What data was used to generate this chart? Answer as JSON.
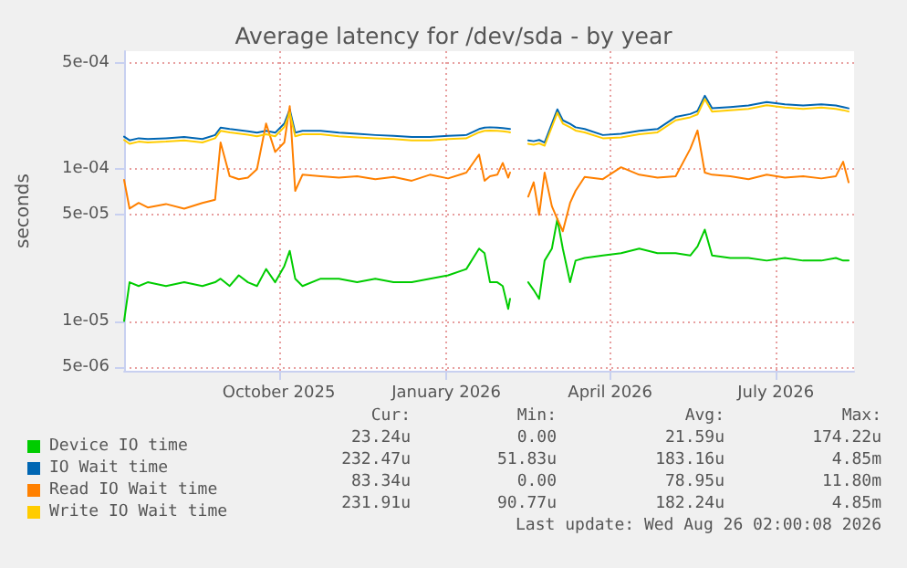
{
  "chart_data": {
    "type": "line",
    "title": "Average latency for /dev/sda - by year",
    "ylabel": "seconds",
    "x": [
      "2025-07-08",
      "2025-07-11",
      "2025-07-16",
      "2025-07-21",
      "2025-07-31",
      "2025-08-10",
      "2025-08-20",
      "2025-08-27",
      "2025-08-30",
      "2025-09-04",
      "2025-09-09",
      "2025-09-14",
      "2025-09-19",
      "2025-09-24",
      "2025-09-29",
      "2025-10-04",
      "2025-10-07",
      "2025-10-10",
      "2025-10-14",
      "2025-10-24",
      "2025-11-03",
      "2025-11-13",
      "2025-11-23",
      "2025-12-03",
      "2025-12-13",
      "2025-12-23",
      "2026-01-02",
      "2026-01-12",
      "2026-01-19",
      "2026-01-22",
      "2026-01-25",
      "2026-01-29",
      "2026-02-01",
      "2026-02-04",
      "2026-02-05",
      "2026-02-10",
      "2026-02-15",
      "2026-02-18",
      "2026-02-21",
      "2026-02-24",
      "2026-02-28",
      "2026-03-03",
      "2026-03-06",
      "2026-03-10",
      "2026-03-13",
      "2026-03-18",
      "2026-03-28",
      "2026-04-07",
      "2026-04-17",
      "2026-04-27",
      "2026-05-07",
      "2026-05-15",
      "2026-05-19",
      "2026-05-23",
      "2026-05-27",
      "2026-06-06",
      "2026-06-16",
      "2026-06-26",
      "2026-07-06",
      "2026-07-16",
      "2026-07-26",
      "2026-08-03",
      "2026-08-07",
      "2026-08-10"
    ],
    "series": [
      {
        "name": "Device IO time",
        "color": "#00cc00",
        "values": [
          1e-05,
          1.8e-05,
          1.7e-05,
          1.8e-05,
          1.7e-05,
          1.8e-05,
          1.7e-05,
          1.8e-05,
          1.9e-05,
          1.7e-05,
          2e-05,
          1.8e-05,
          1.7e-05,
          2.2e-05,
          1.8e-05,
          2.3e-05,
          2.9e-05,
          1.9e-05,
          1.7e-05,
          1.9e-05,
          1.9e-05,
          1.8e-05,
          1.9e-05,
          1.8e-05,
          1.8e-05,
          1.9e-05,
          2e-05,
          2.2e-05,
          3e-05,
          2.8e-05,
          1.8e-05,
          1.8e-05,
          1.7e-05,
          1.2e-05,
          1.4e-05,
          null,
          1.8e-05,
          1.6e-05,
          1.4e-05,
          2.5e-05,
          3e-05,
          4.7e-05,
          3e-05,
          1.8e-05,
          2.5e-05,
          2.6e-05,
          2.7e-05,
          2.8e-05,
          3e-05,
          2.8e-05,
          2.8e-05,
          2.7e-05,
          3.1e-05,
          4e-05,
          2.7e-05,
          2.6e-05,
          2.6e-05,
          2.5e-05,
          2.6e-05,
          2.5e-05,
          2.5e-05,
          2.6e-05,
          2.5e-05,
          2.5e-05
        ]
      },
      {
        "name": "IO Wait time",
        "color": "#0066b3",
        "values": [
          0.000164,
          0.000155,
          0.00016,
          0.000158,
          0.00016,
          0.000163,
          0.000158,
          0.000168,
          0.000188,
          0.000184,
          0.000181,
          0.000178,
          0.000174,
          0.000179,
          0.000174,
          0.0002,
          0.000248,
          0.000174,
          0.000179,
          0.000179,
          0.000174,
          0.000171,
          0.000168,
          0.000166,
          0.000163,
          0.000163,
          0.000166,
          0.000168,
          0.000184,
          0.000188,
          0.000189,
          0.000188,
          0.000187,
          0.000185,
          0.000184,
          null,
          0.000155,
          0.000153,
          0.000156,
          0.00015,
          0.0002,
          0.000248,
          0.00021,
          0.000199,
          0.000189,
          0.000184,
          0.000168,
          0.000171,
          0.000179,
          0.000184,
          0.000221,
          0.000231,
          0.000242,
          0.000305,
          0.000252,
          0.000257,
          0.000263,
          0.000277,
          0.000268,
          0.000263,
          0.000268,
          0.000263,
          0.000257,
          0.000252
        ]
      },
      {
        "name": "Read IO Wait time",
        "color": "#ff8000",
        "values": [
          8.5e-05,
          5.5e-05,
          6e-05,
          5.6e-05,
          5.9e-05,
          5.5e-05,
          6e-05,
          6.3e-05,
          0.00015,
          9e-05,
          8.6e-05,
          8.8e-05,
          0.0001,
          0.0002,
          0.00013,
          0.00015,
          0.00026,
          7.2e-05,
          9.2e-05,
          9e-05,
          8.8e-05,
          9e-05,
          8.6e-05,
          8.9e-05,
          8.4e-05,
          9.2e-05,
          8.7e-05,
          9.5e-05,
          0.000125,
          8.4e-05,
          9e-05,
          9.2e-05,
          0.00011,
          8.8e-05,
          9.5e-05,
          null,
          6.6e-05,
          8.2e-05,
          5e-05,
          9.5e-05,
          5.7e-05,
          4.7e-05,
          3.9e-05,
          6e-05,
          7.2e-05,
          8.9e-05,
          8.6e-05,
          0.000103,
          9.2e-05,
          8.8e-05,
          9e-05,
          0.000136,
          0.00018,
          9.5e-05,
          9.2e-05,
          9e-05,
          8.6e-05,
          9.2e-05,
          8.8e-05,
          9e-05,
          8.7e-05,
          9e-05,
          0.000112,
          8.2e-05
        ]
      },
      {
        "name": "Write IO Wait time",
        "color": "#ffcc00",
        "values": [
          0.000156,
          0.000147,
          0.000152,
          0.00015,
          0.000152,
          0.000155,
          0.00015,
          0.00016,
          0.000179,
          0.000175,
          0.000172,
          0.000169,
          0.000165,
          0.00017,
          0.000165,
          0.00019,
          0.000236,
          0.000165,
          0.00017,
          0.00017,
          0.000165,
          0.000162,
          0.00016,
          0.000158,
          0.000155,
          0.000155,
          0.000158,
          0.00016,
          0.000175,
          0.000179,
          0.00018,
          0.000179,
          0.000178,
          0.000176,
          0.000175,
          null,
          0.000147,
          0.000145,
          0.000148,
          0.000143,
          0.00019,
          0.000236,
          0.0002,
          0.000189,
          0.00018,
          0.000175,
          0.00016,
          0.000162,
          0.00017,
          0.000175,
          0.00021,
          0.00022,
          0.00023,
          0.00029,
          0.00024,
          0.000245,
          0.00025,
          0.000264,
          0.000255,
          0.00025,
          0.000255,
          0.00025,
          0.000245,
          0.00024
        ]
      }
    ],
    "log": "y",
    "ylim": [
      4.7e-06,
      0.0006
    ],
    "yticks": [
      {
        "value": 5e-06,
        "label": "5e-06"
      },
      {
        "value": 1e-05,
        "label": "1e-05"
      },
      {
        "value": 5e-05,
        "label": "5e-05"
      },
      {
        "value": 0.0001,
        "label": "1e-04"
      },
      {
        "value": 0.0005,
        "label": "5e-04"
      }
    ],
    "xlim": [
      "2025-07-08",
      "2026-08-13"
    ],
    "xticks": [
      {
        "value": "2025-10-01",
        "label": "October 2025"
      },
      {
        "value": "2026-01-01",
        "label": "January 2026"
      },
      {
        "value": "2026-04-01",
        "label": "April 2026"
      },
      {
        "value": "2026-07-01",
        "label": "July 2026"
      }
    ],
    "grid": true,
    "legend": "bottom left",
    "line_style": "solid",
    "marker": "none",
    "annotations": [
      "Cur:",
      "Min:",
      "Avg:",
      "Max:",
      "23.24u",
      "0.00",
      "21.59u",
      "174.22u",
      "232.47u",
      "51.83u",
      "183.16u",
      "4.85m",
      "83.34u",
      "0.00",
      "78.95u",
      "11.80m",
      "231.91u",
      "90.77u",
      "182.24u",
      "4.85m",
      "Last update: Wed Aug 26 02:00:08 2026"
    ]
  }
}
